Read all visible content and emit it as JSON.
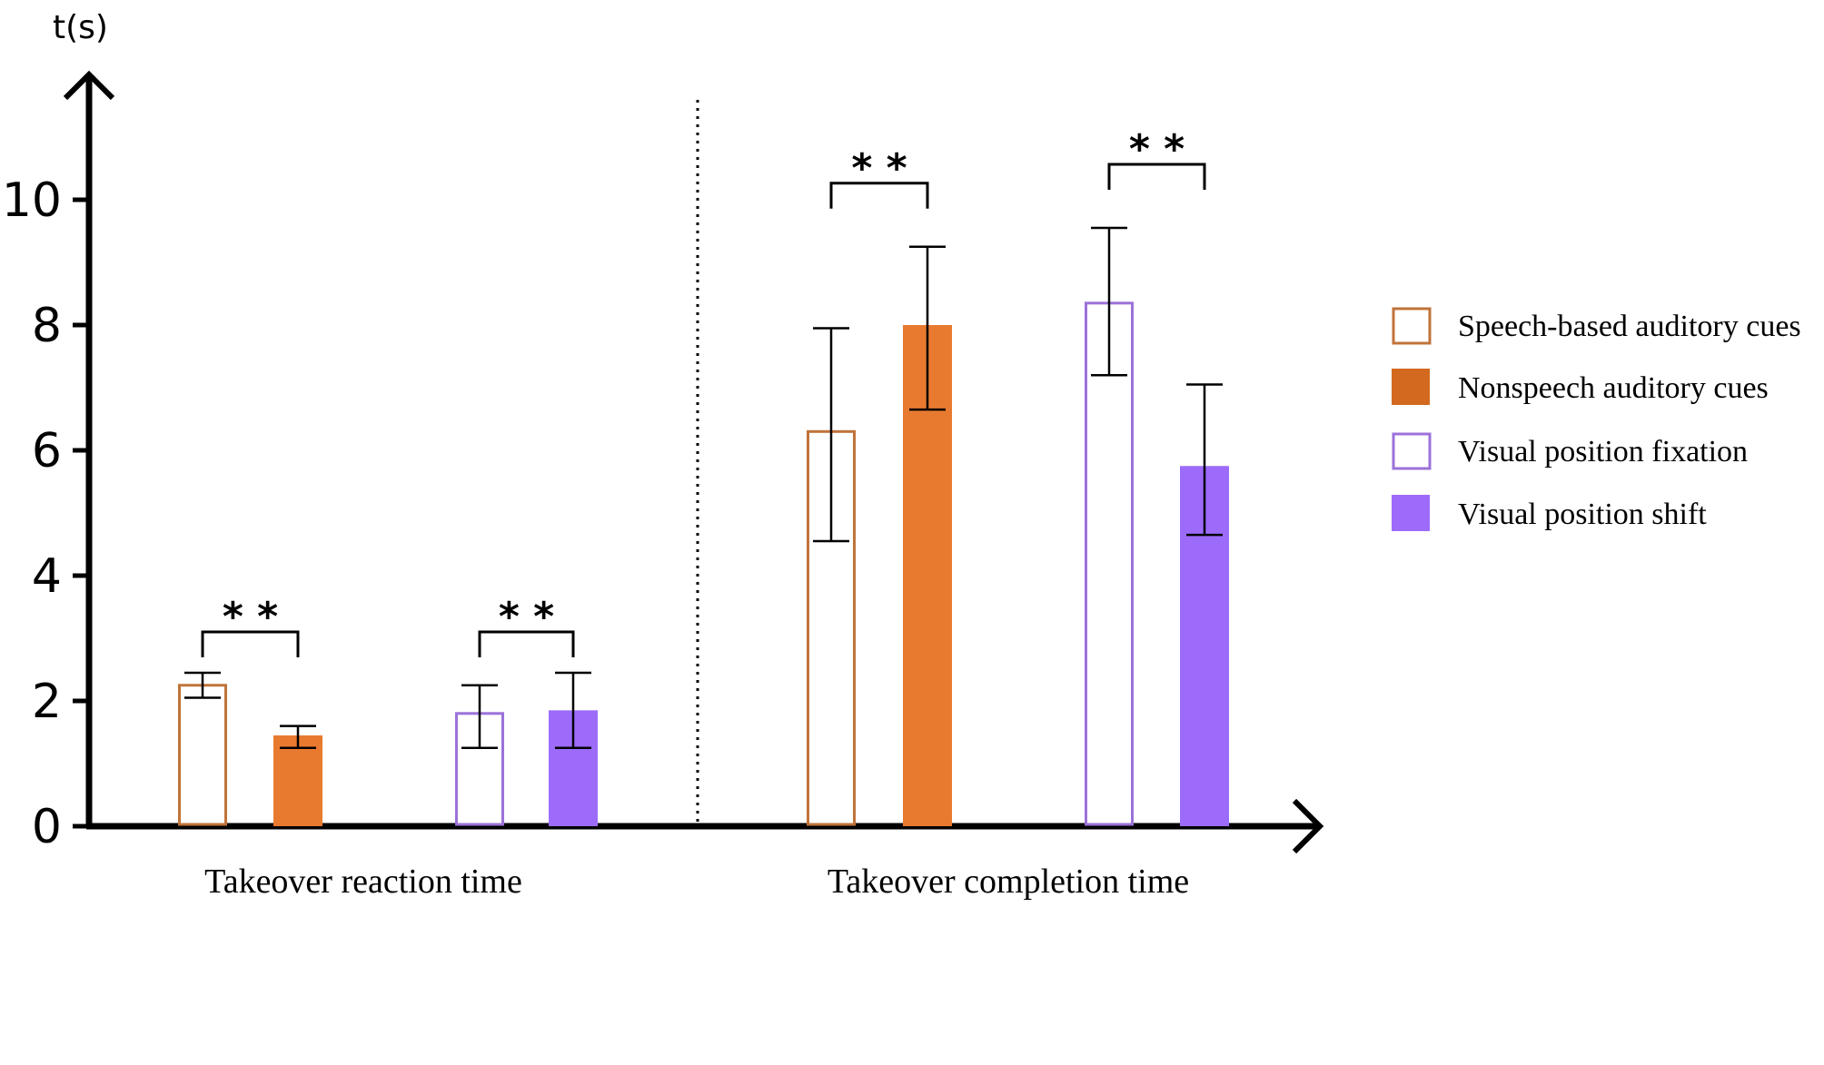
{
  "chart_data": {
    "type": "bar",
    "title": "",
    "ylabel": "t(s)",
    "xlabel": "",
    "ylim": [
      0,
      11.9
    ],
    "yticks": [
      0,
      2,
      4,
      6,
      8,
      10
    ],
    "groups": [
      {
        "label": "Takeover reaction time",
        "pairs": [
          {
            "series": [
              "Speech-based auditory cues",
              "Nonspeech auditory cues"
            ],
            "significance": "* *"
          },
          {
            "series": [
              "Visual position fixation",
              "Visual position shift"
            ],
            "significance": "* *"
          }
        ]
      },
      {
        "label": "Takeover completion time",
        "pairs": [
          {
            "series": [
              "Speech-based auditory cues",
              "Nonspeech auditory cues"
            ],
            "significance": "* *"
          },
          {
            "series": [
              "Visual position fixation",
              "Visual position shift"
            ],
            "significance": "* *"
          }
        ]
      }
    ],
    "series": [
      {
        "name": "Speech-based auditory cues",
        "style": "outline",
        "color": "#C0733A",
        "values": [
          2.25,
          6.3
        ],
        "error_low": [
          2.05,
          4.55
        ],
        "error_high": [
          2.45,
          7.95
        ]
      },
      {
        "name": "Nonspeech auditory cues",
        "style": "filled",
        "color": "#E87A30",
        "values": [
          1.45,
          8.0
        ],
        "error_low": [
          1.25,
          6.65
        ],
        "error_high": [
          1.6,
          9.25
        ]
      },
      {
        "name": "Visual position fixation",
        "style": "outline",
        "color": "#9C72D8",
        "values": [
          1.8,
          8.35
        ],
        "error_low": [
          1.25,
          7.2
        ],
        "error_high": [
          2.25,
          9.55
        ]
      },
      {
        "name": "Visual position shift",
        "style": "filled",
        "color": "#9D6BFA",
        "values": [
          1.85,
          5.75
        ],
        "error_low": [
          1.25,
          4.65
        ],
        "error_high": [
          2.45,
          7.05
        ]
      }
    ],
    "legend": {
      "position": "right",
      "items": [
        {
          "label": "Speech-based auditory cues",
          "style": "outline",
          "color": "#C0733A"
        },
        {
          "label": "Nonspeech auditory cues",
          "style": "filled",
          "color": "#D2691E"
        },
        {
          "label": "Visual position fixation",
          "style": "outline",
          "color": "#9C72D8"
        },
        {
          "label": "Visual position shift",
          "style": "filled",
          "color": "#9D6BFA"
        }
      ]
    }
  }
}
